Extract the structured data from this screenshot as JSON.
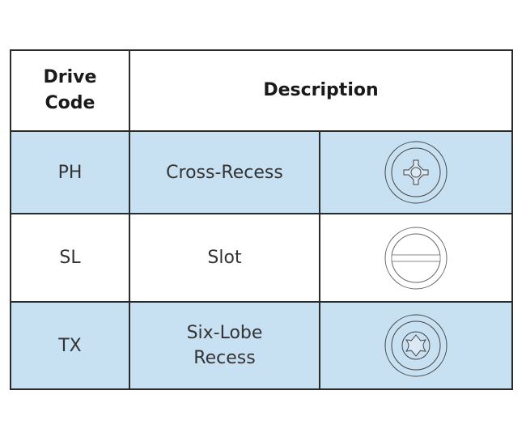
{
  "headers": {
    "drive_code": "Drive\nCode",
    "description": "Description"
  },
  "rows": [
    {
      "code": "PH",
      "description": "Cross-Recess",
      "icon": "phillips-drive-icon"
    },
    {
      "code": "SL",
      "description": "Slot",
      "icon": "slotted-drive-icon"
    },
    {
      "code": "TX",
      "description": "Six-Lobe\nRecess",
      "icon": "six-lobe-drive-icon"
    }
  ],
  "colors": {
    "row_highlight": "#c7e0f2",
    "border": "#2a2a2a"
  }
}
